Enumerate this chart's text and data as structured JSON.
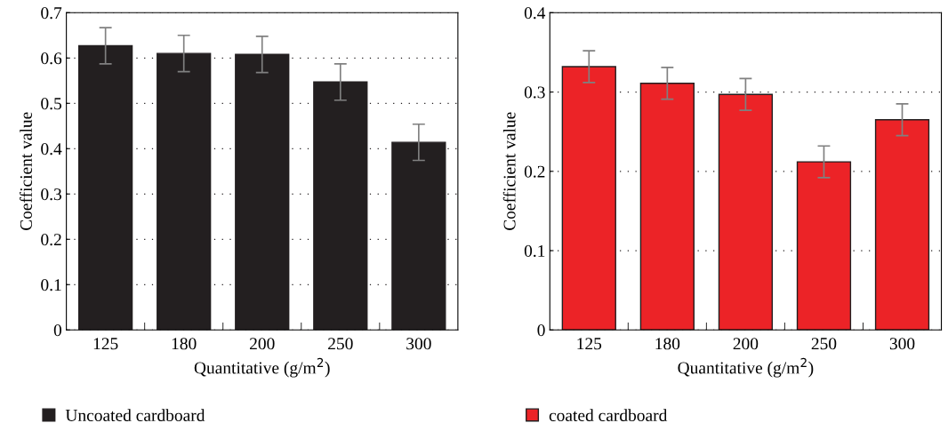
{
  "chart_data": [
    {
      "type": "bar",
      "xlabel": "Quantitative (g/m$^{2}$)",
      "ylabel": "Coefficient value",
      "categories": [
        "125",
        "180",
        "200",
        "250",
        "300"
      ],
      "series": [
        {
          "name": "Uncoated cardboard",
          "color": "#231f20",
          "values": [
            0.627,
            0.61,
            0.608,
            0.547,
            0.414
          ],
          "errors": [
            0.04,
            0.04,
            0.04,
            0.04,
            0.04
          ]
        }
      ],
      "ylim": [
        0,
        0.7
      ],
      "yticks": [
        0,
        0.1,
        0.2,
        0.3,
        0.4,
        0.5,
        0.6,
        0.7
      ],
      "grid": "y",
      "legend": "bottom left"
    },
    {
      "type": "bar",
      "xlabel": "Quantitative (g/m$^{2}$)",
      "ylabel": "Coefficient value",
      "categories": [
        "125",
        "180",
        "200",
        "250",
        "300"
      ],
      "series": [
        {
          "name": "coated cardboard",
          "color": "#ec2327",
          "values": [
            0.332,
            0.311,
            0.297,
            0.212,
            0.265
          ],
          "errors": [
            0.02,
            0.02,
            0.02,
            0.02,
            0.02
          ]
        }
      ],
      "ylim": [
        0,
        0.4
      ],
      "yticks": [
        0,
        0.1,
        0.2,
        0.3,
        0.4
      ],
      "grid": "y",
      "legend": "bottom left"
    }
  ]
}
